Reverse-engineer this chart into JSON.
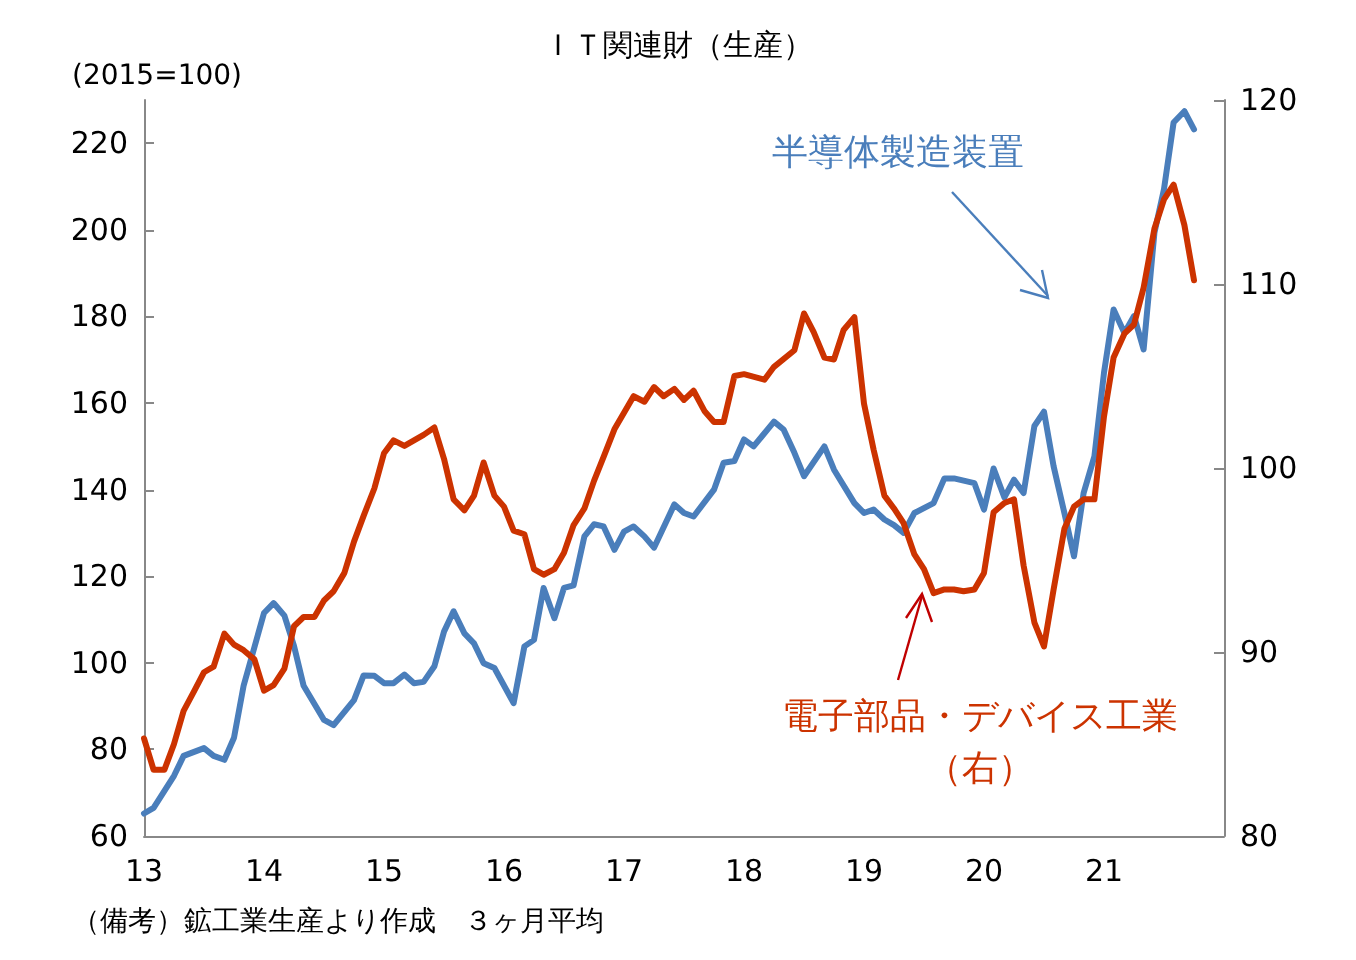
{
  "chart_data": {
    "type": "line",
    "title": "ＩＴ関連財（生産）",
    "ylabel": "(2015=100)",
    "annotations": [
      "（備考）鉱工業生産より作成　３ヶ月平均"
    ],
    "xlim": [
      13,
      22
    ],
    "xticks": [
      13,
      14,
      15,
      16,
      17,
      18,
      19,
      20,
      21
    ],
    "ylim": [
      60,
      230
    ],
    "yticks": [
      60,
      80,
      100,
      120,
      140,
      160,
      180,
      200,
      220
    ],
    "y2lim": [
      80,
      120
    ],
    "y2ticks": [
      80,
      90,
      100,
      110,
      120
    ],
    "grid": false,
    "legend": false,
    "marker": "none",
    "line_style": "solid",
    "series": [
      {
        "name": "半導体製造装置",
        "color": "#4a7ebb",
        "x": [
          13,
          13.08,
          13.25,
          13.33,
          13.5,
          13.58,
          13.67,
          13.75,
          13.83,
          14,
          14.08,
          14.17,
          14.25,
          14.33,
          14.5,
          14.58,
          14.75,
          14.83,
          14.92,
          15,
          15.08,
          15.17,
          15.25,
          15.33,
          15.42,
          15.5,
          15.58,
          15.67,
          15.75,
          15.83,
          15.92,
          16.08,
          16.17,
          16.25,
          16.33,
          16.42,
          16.5,
          16.58,
          16.67,
          16.75,
          16.83,
          16.92,
          17,
          17.08,
          17.17,
          17.25,
          17.42,
          17.5,
          17.58,
          17.75,
          17.83,
          17.92,
          18,
          18.08,
          18.25,
          18.33,
          18.42,
          18.5,
          18.67,
          18.75,
          18.92,
          19,
          19.08,
          19.17,
          19.25,
          19.33,
          19.42,
          19.58,
          19.67,
          19.75,
          19.92,
          20,
          20.08,
          20.17,
          20.25,
          20.33,
          20.42,
          20.5,
          20.58,
          20.67,
          20.75,
          20.83,
          20.92,
          21,
          21.08,
          21.17,
          21.25,
          21.33,
          21.42,
          21.5,
          21.58,
          21.67,
          21.75
        ],
        "values": [
          65.2,
          66.5,
          73.9,
          78.5,
          80.3,
          78.5,
          77.6,
          82.7,
          94.7,
          111.5,
          113.8,
          110.9,
          103.9,
          94.7,
          86.8,
          85.6,
          91.4,
          97.1,
          97,
          95.3,
          95.3,
          97.3,
          95.3,
          95.6,
          99.2,
          107.2,
          111.9,
          106.8,
          104.5,
          99.9,
          98.8,
          90.7,
          103.8,
          105.3,
          117.3,
          110.3,
          117.3,
          117.9,
          129.2,
          132,
          131.5,
          126.1,
          130.3,
          131.5,
          129.2,
          126.6,
          136.6,
          134.6,
          133.8,
          140,
          146.2,
          146.6,
          151.6,
          150,
          155.7,
          153.9,
          148.5,
          143.1,
          150,
          144.6,
          136.9,
          134.6,
          135.4,
          133.1,
          131.8,
          130,
          134.6,
          136.9,
          142.6,
          142.6,
          141.5,
          135.4,
          144.9,
          138.2,
          142.3,
          139.2,
          154.7,
          158,
          145.4,
          134.6,
          124.6,
          139.2,
          147.7,
          167,
          181.6,
          176.2,
          180.1,
          172.4,
          199.3,
          209.4,
          224.8,
          227.4,
          223.2
        ]
      },
      {
        "name": "電子部品・デバイス工業（右）",
        "color": "#cc3300",
        "axis": "y2",
        "x": [
          13,
          13.08,
          13.17,
          13.25,
          13.33,
          13.42,
          13.5,
          13.58,
          13.67,
          13.75,
          13.83,
          13.92,
          14,
          14.08,
          14.17,
          14.25,
          14.33,
          14.42,
          14.5,
          14.58,
          14.67,
          14.75,
          14.83,
          14.92,
          15,
          15.08,
          15.17,
          15.25,
          15.33,
          15.42,
          15.5,
          15.58,
          15.67,
          15.75,
          15.83,
          15.92,
          16,
          16.08,
          16.17,
          16.25,
          16.33,
          16.42,
          16.5,
          16.58,
          16.67,
          16.75,
          16.83,
          16.92,
          17,
          17.08,
          17.17,
          17.25,
          17.33,
          17.42,
          17.5,
          17.58,
          17.67,
          17.75,
          17.83,
          17.92,
          18,
          18.17,
          18.25,
          18.42,
          18.5,
          18.58,
          18.67,
          18.75,
          18.83,
          18.92,
          19,
          19.08,
          19.17,
          19.25,
          19.33,
          19.42,
          19.5,
          19.58,
          19.67,
          19.75,
          19.83,
          19.92,
          20,
          20.08,
          20.17,
          20.25,
          20.33,
          20.42,
          20.5,
          20.58,
          20.67,
          20.75,
          20.83,
          20.92,
          21,
          21.08,
          21.17,
          21.25,
          21.33,
          21.42,
          21.5,
          21.58,
          21.67,
          21.75
        ],
        "values": [
          85.3,
          83.6,
          83.6,
          85,
          86.8,
          87.9,
          88.9,
          89.2,
          91,
          90.4,
          90.1,
          89.6,
          87.9,
          88.2,
          89.1,
          91.4,
          91.9,
          91.9,
          92.8,
          93.3,
          94.3,
          96,
          97.4,
          98.9,
          100.8,
          101.5,
          101.2,
          101.5,
          101.8,
          102.2,
          100.5,
          98.3,
          97.7,
          98.5,
          100.3,
          98.5,
          97.9,
          96.6,
          96.4,
          94.5,
          94.2,
          94.5,
          95.4,
          96.9,
          97.8,
          99.3,
          100.6,
          102.1,
          103,
          103.9,
          103.6,
          104.4,
          103.9,
          104.3,
          103.7,
          104.2,
          103.1,
          102.5,
          102.5,
          105,
          105.1,
          104.8,
          105.5,
          106.4,
          108.4,
          107.4,
          106,
          105.9,
          107.5,
          108.2,
          103.5,
          101,
          98.5,
          97.8,
          97,
          95.3,
          94.5,
          93.2,
          93.4,
          93.4,
          93.3,
          93.4,
          94.3,
          97.6,
          98.1,
          98.3,
          94.7,
          91.6,
          90.3,
          93.4,
          96.7,
          97.9,
          98.3,
          98.3,
          102.8,
          106,
          107.3,
          107.8,
          109.8,
          113,
          114.6,
          115.4,
          113.2,
          110.2
        ]
      }
    ]
  }
}
